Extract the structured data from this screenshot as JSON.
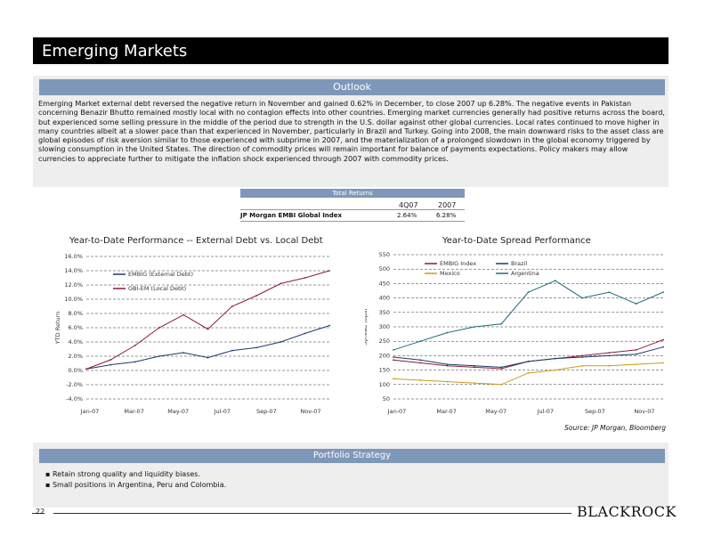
{
  "header": {
    "title": "Emerging Markets"
  },
  "outlook": {
    "heading": "Outlook",
    "body": "Emerging Market external debt reversed the negative return in November and gained 0.62% in December, to close 2007 up 6.28%. The negative events in Pakistan concerning Benazir Bhutto remained mostly local with no contagion effects into other countries. Emerging market currencies generally had positive returns across the board, but experienced some selling pressure in the middle of the period due to strength in the U.S. dollar against other global currencies. Local rates continued to move higher in many countries albeit at a slower pace than that experienced in November, particularly in Brazil and Turkey. Going into 2008, the main downward risks to the asset class are global episodes of risk aversion similar to those experienced with subprime in 2007, and the materialization of a prolonged slowdown in the global economy triggered by slowing consumption in the United States. The direction of commodity prices will remain important for balance of payments expectations. Policy makers may allow currencies to appreciate further to mitigate the inflation shock experienced through 2007 with commodity prices."
  },
  "returns_table": {
    "title": "Total Returns",
    "columns": [
      "4Q07",
      "2007"
    ],
    "rows": [
      {
        "label": "JP Morgan EMBI Global Index",
        "values": [
          "2.64%",
          "6.28%"
        ]
      }
    ]
  },
  "colors": {
    "accent": "#7f98b9",
    "series_navy": "#1e3a6b",
    "series_red": "#8b1a3a",
    "series_teal": "#1f6b7e",
    "series_gold": "#c99a1a"
  },
  "chart_data": [
    {
      "type": "line",
      "title": "Year-to-Date Performance -- External Debt vs. Local Debt",
      "ylabel": "YTD Return",
      "y_ticks": [
        "16.0%",
        "14.0%",
        "12.0%",
        "10.0%",
        "8.0%",
        "6.0%",
        "4.0%",
        "2.0%",
        "0.0%",
        "-2.0%",
        "-4.0%"
      ],
      "x_ticks": [
        "Jan-07",
        "Mar-07",
        "May-07",
        "Jul-07",
        "Sep-07",
        "Nov-07"
      ],
      "ylim": [
        -4,
        16
      ],
      "legend": "top-left",
      "series": [
        {
          "name": "EMBIG (External Debt)",
          "x": [
            0,
            10,
            20,
            30,
            40,
            50,
            60,
            70,
            80,
            90,
            100
          ],
          "values": [
            0.2,
            0.8,
            1.2,
            2.0,
            2.5,
            1.8,
            2.8,
            3.2,
            4.0,
            5.2,
            6.3
          ]
        },
        {
          "name": "GBI-EM (Local Debt)",
          "x": [
            0,
            10,
            20,
            30,
            40,
            50,
            60,
            70,
            80,
            90,
            100
          ],
          "values": [
            0.2,
            1.5,
            3.5,
            6.0,
            7.8,
            5.8,
            9.0,
            10.5,
            12.2,
            13.0,
            14.0
          ]
        }
      ]
    },
    {
      "type": "line",
      "title": "Year-to-Date Spread Performance",
      "ylabel": "Spread (bps)",
      "y_ticks": [
        "550",
        "500",
        "450",
        "400",
        "350",
        "300",
        "250",
        "200",
        "150",
        "100",
        "50"
      ],
      "x_ticks": [
        "Jan-07",
        "Mar-07",
        "May-07",
        "Jul-07",
        "Sep-07",
        "Nov-07"
      ],
      "ylim": [
        50,
        550
      ],
      "legend": "top",
      "series": [
        {
          "name": "EMBIG Index",
          "x": [
            0,
            10,
            20,
            30,
            40,
            50,
            60,
            70,
            80,
            90,
            100
          ],
          "values": [
            185,
            175,
            165,
            160,
            155,
            180,
            190,
            200,
            210,
            220,
            255
          ]
        },
        {
          "name": "Brazil",
          "x": [
            0,
            10,
            20,
            30,
            40,
            50,
            60,
            70,
            80,
            90,
            100
          ],
          "values": [
            195,
            185,
            170,
            165,
            160,
            180,
            190,
            195,
            200,
            205,
            230
          ]
        },
        {
          "name": "Mexico",
          "x": [
            0,
            10,
            20,
            30,
            40,
            50,
            60,
            70,
            80,
            90,
            100
          ],
          "values": [
            120,
            115,
            110,
            105,
            100,
            140,
            150,
            165,
            165,
            170,
            175
          ]
        },
        {
          "name": "Argentina",
          "x": [
            0,
            10,
            20,
            30,
            40,
            50,
            60,
            70,
            80,
            90,
            100
          ],
          "values": [
            220,
            250,
            280,
            300,
            310,
            420,
            460,
            400,
            420,
            380,
            420
          ]
        }
      ]
    }
  ],
  "source": "Source: JP Morgan, Bloomberg",
  "strategy": {
    "heading": "Portfolio Strategy",
    "bullets": [
      "Retain strong quality and liquidity biases.",
      "Small positions in Argentina, Peru and Colombia."
    ]
  },
  "footer": {
    "page": "22",
    "logo": "BLACKROCK"
  }
}
